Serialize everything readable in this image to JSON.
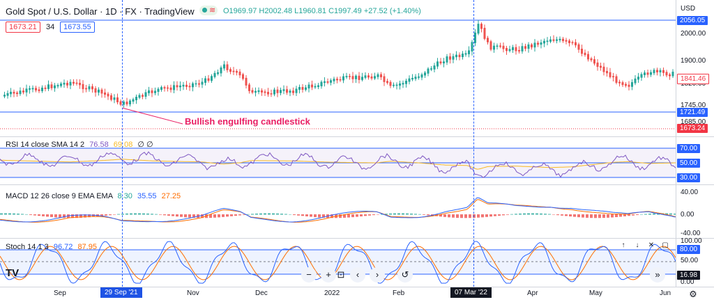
{
  "header": {
    "symbol": "Gold Spot / U.S. Dollar · 1D · FX · TradingView",
    "ohlc": "O1969.97 H2002.48 L1960.81 C1997.49 +27.52 (+1.40%)",
    "bid": "1673.21",
    "spread": "34",
    "ask": "1673.55"
  },
  "currency": "USD",
  "annotation": "Bullish engulfing candlestick",
  "price_axis": {
    "ticks": [
      "2000.00",
      "1900.00",
      "1820.00",
      "1745.00",
      "1685.00"
    ],
    "badges": [
      {
        "text": "2056.05",
        "color": "#2962ff"
      },
      {
        "text": "1841.46",
        "color": "#ffffff",
        "fg": "#f23645"
      },
      {
        "text": "1721.49",
        "color": "#2962ff"
      },
      {
        "text": "1673.24",
        "color": "#f23645"
      }
    ]
  },
  "rsi": {
    "title": "RSI 14 close SMA 14 2",
    "v1": "76.58",
    "v2": "69.08",
    "v3": "∅ ∅",
    "badges": [
      "70.00",
      "50.00",
      "30.00"
    ]
  },
  "macd": {
    "title": "MACD 12 26 close 9 EMA EMA",
    "v1": "8.30",
    "v2": "35.55",
    "v3": "27.25",
    "ticks": [
      "40.00",
      "0.00",
      "-40.00"
    ]
  },
  "stoch": {
    "title": "Stoch 14 1 3",
    "v1": "96.72",
    "v2": "87.95",
    "ticks": [
      "100.00",
      "50.00",
      "0.00"
    ],
    "badges": [
      "80.00",
      "16.98"
    ]
  },
  "time_axis": {
    "labels": [
      "Sep",
      "Nov",
      "Dec",
      "2022",
      "Feb",
      "Apr",
      "May",
      "Jun"
    ],
    "cursor1": "29 Sep '21",
    "cursor2": "07 Mar '22"
  },
  "colors": {
    "up": "#26a69a",
    "down": "#ef5350",
    "accent": "#2962ff",
    "rsi": "#7e57c2",
    "signal": "#f7b924",
    "macd_fast": "#2962ff",
    "macd_slow": "#ff6d00"
  },
  "icons": [
    "tradingview-logo-icon",
    "zoom-out-icon",
    "zoom-in-icon",
    "reset-icon",
    "scroll-left-icon",
    "scroll-right-icon",
    "undo-icon",
    "arrow-up-icon",
    "arrow-down-icon",
    "close-icon",
    "maximize-icon",
    "settings-icon",
    "double-arrow-icon"
  ]
}
